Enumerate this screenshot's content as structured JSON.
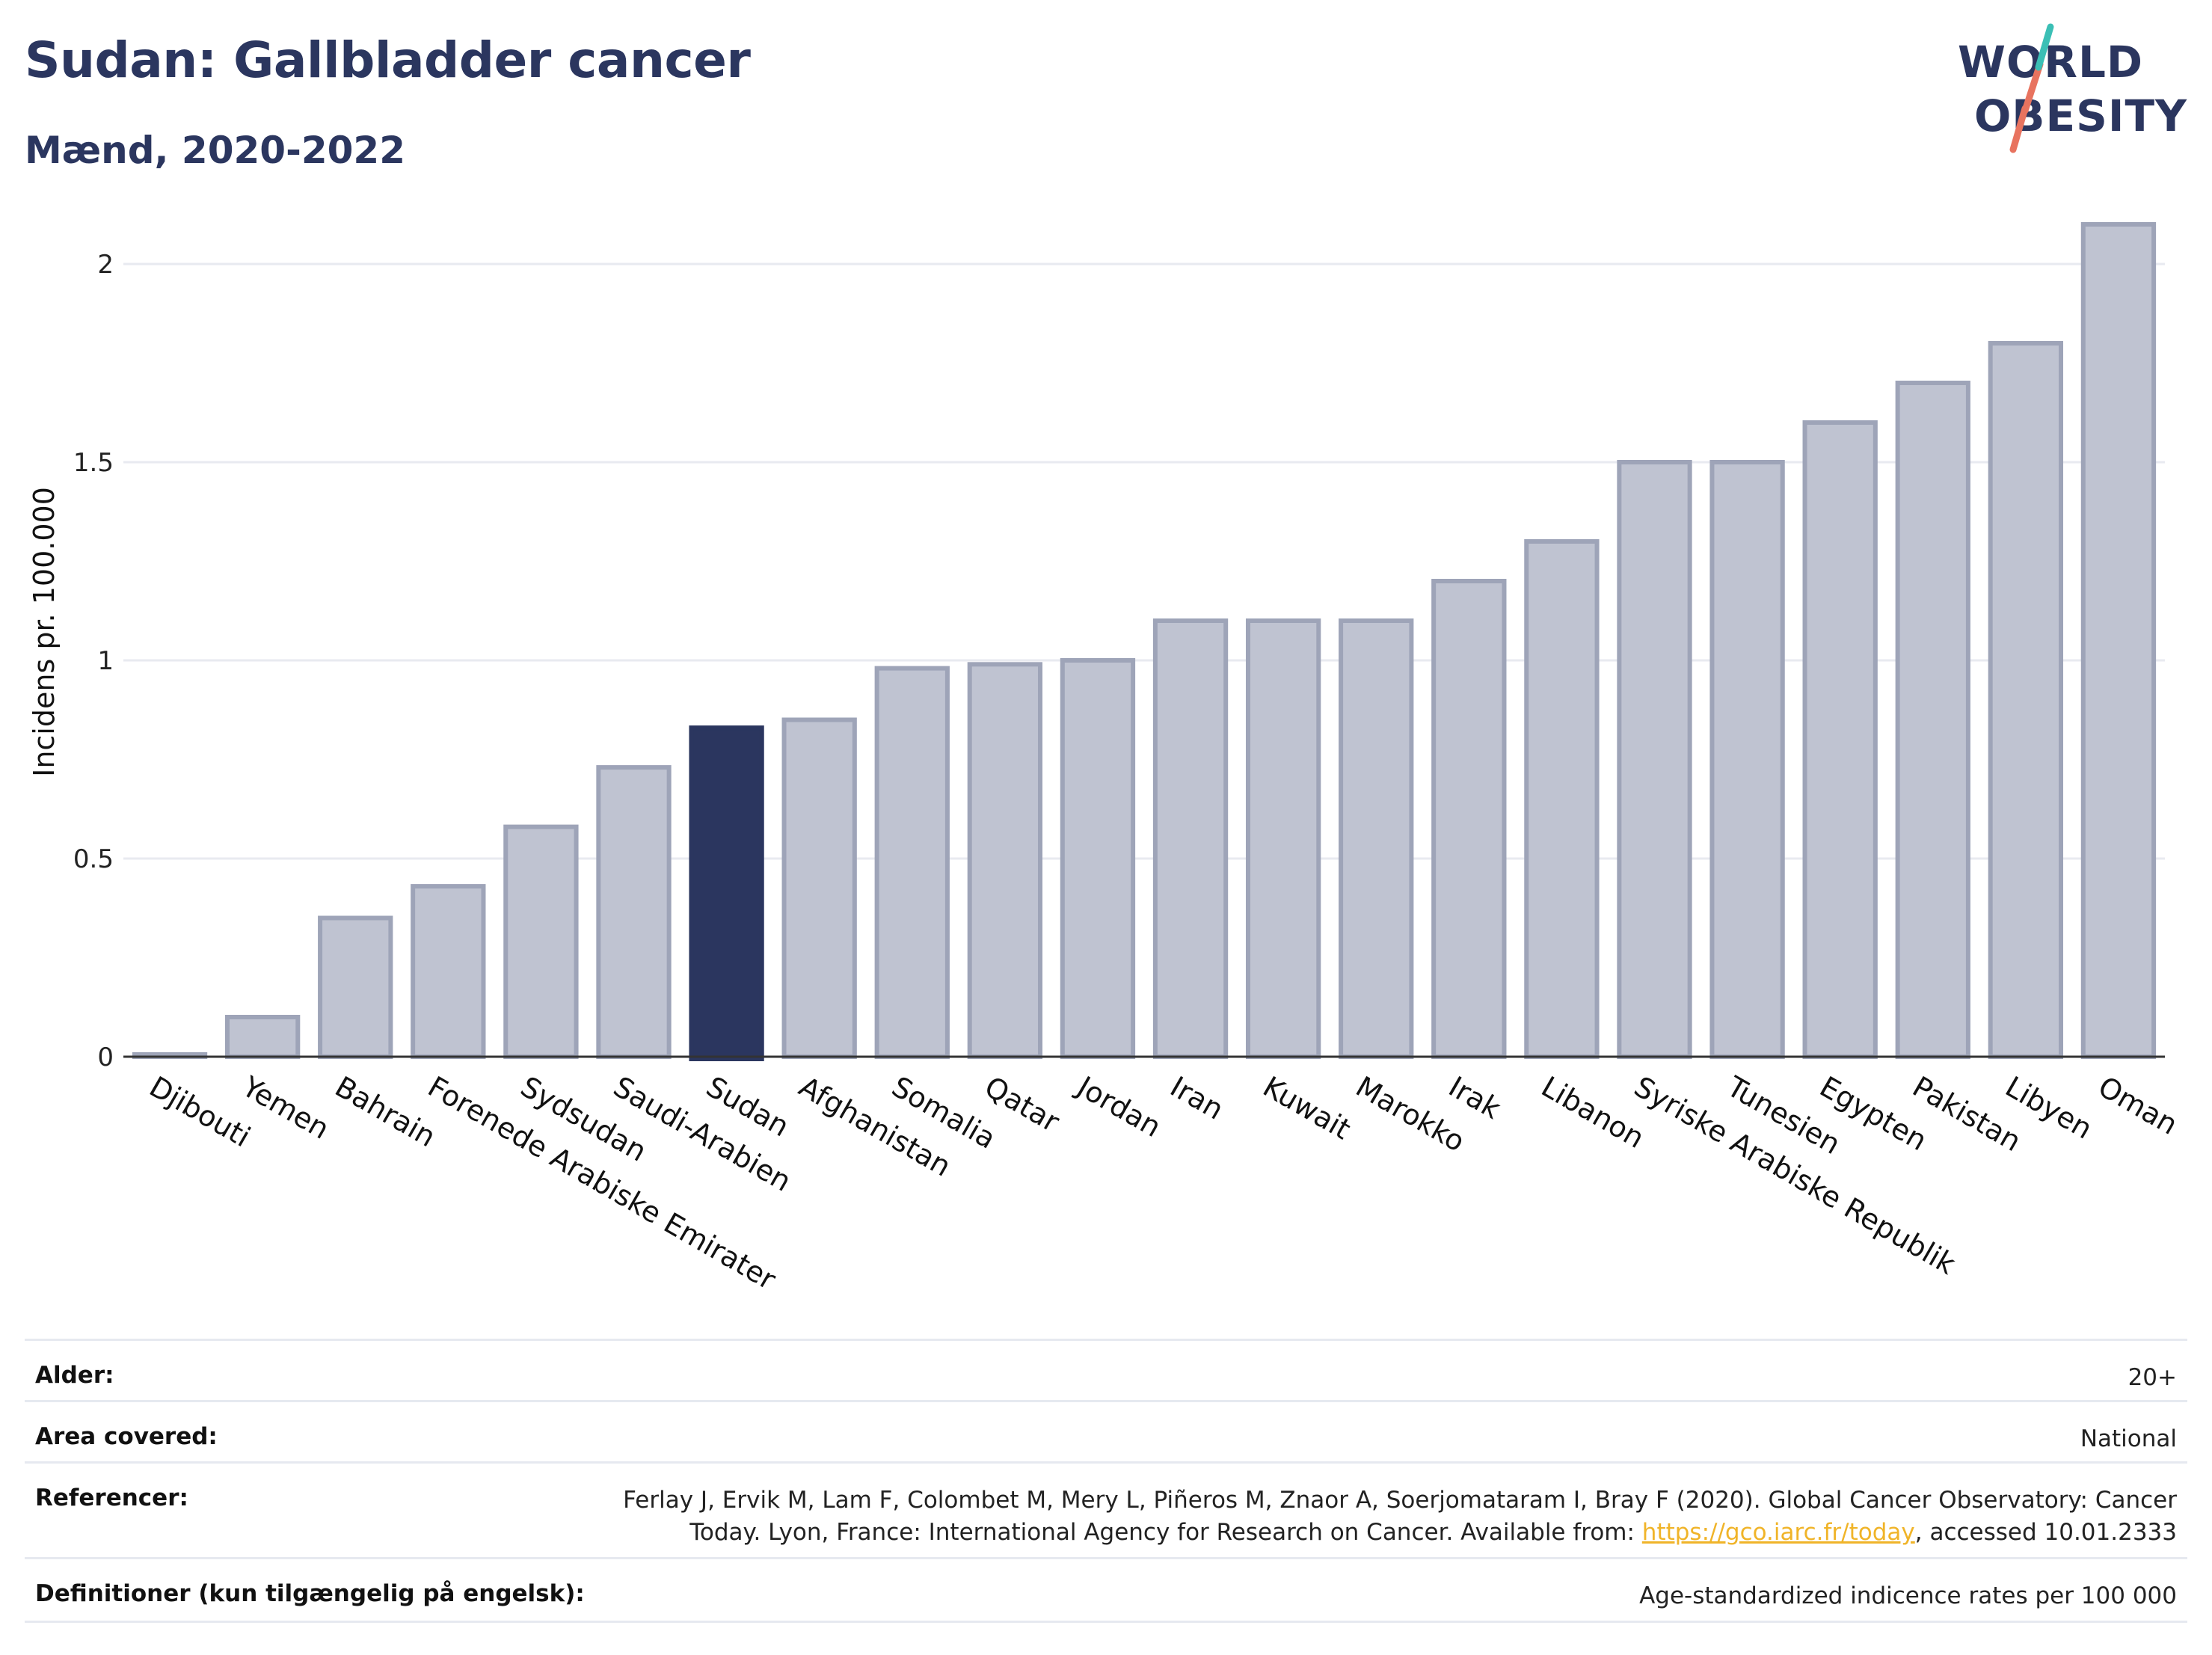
{
  "header": {
    "title": "Sudan: Gallbladder cancer",
    "subtitle": "Mænd, 2020-2022"
  },
  "logo": {
    "line1": "WORLD",
    "line2": "OBESITY",
    "colors": {
      "navy": "#2b365f",
      "teal": "#3bbfb5",
      "coral": "#e8735f"
    }
  },
  "chart_data": {
    "type": "bar",
    "ylabel": "Incidens pr. 100.000",
    "ylim": [
      0,
      2.1
    ],
    "yticks": [
      0,
      0.5,
      1,
      1.5,
      2
    ],
    "ytick_labels": [
      "0",
      "0.5",
      "1",
      "1.5",
      "2"
    ],
    "grid": true,
    "categories": [
      "Djibouti",
      "Yemen",
      "Bahrain",
      "Forenede Arabiske Emirater",
      "Sydsudan",
      "Saudi-Arabien",
      "Sudan",
      "Afghanistan",
      "Somalia",
      "Qatar",
      "Jordan",
      "Iran",
      "Kuwait",
      "Marokko",
      "Irak",
      "Libanon",
      "Syriske Arabiske Republik",
      "Tunesien",
      "Egypten",
      "Pakistan",
      "Libyen",
      "Oman"
    ],
    "values": [
      0.0,
      0.1,
      0.35,
      0.43,
      0.58,
      0.73,
      0.83,
      0.85,
      0.98,
      0.99,
      1.0,
      1.1,
      1.1,
      1.1,
      1.2,
      1.3,
      1.5,
      1.5,
      1.6,
      1.7,
      1.8,
      2.1
    ],
    "highlight": "Sudan",
    "colors": {
      "bar": "#bfc3d1",
      "bar_border": "#9ea4b8",
      "highlight": "#2b365f",
      "grid": "#e8eaf0",
      "axis": "#333333"
    }
  },
  "meta": {
    "rows": [
      {
        "label": "Alder:",
        "value": "20+"
      },
      {
        "label": "Area covered:",
        "value": "National"
      },
      {
        "label": "Referencer:",
        "value_line1": "Ferlay J, Ervik M, Lam F, Colombet M, Mery L, Piñeros M, Znaor A, Soerjomataram I, Bray F (2020). Global Cancer Observatory: Cancer",
        "value_line2_pre": "Today. Lyon, France: International Agency for Research on Cancer. Available from: ",
        "value_link": "https://gco.iarc.fr/today",
        "value_line2_post": ", accessed 10.01.2333"
      },
      {
        "label": "Definitioner (kun tilgængelig på engelsk):",
        "value": "Age-standardized indicence rates per 100 000"
      }
    ]
  }
}
